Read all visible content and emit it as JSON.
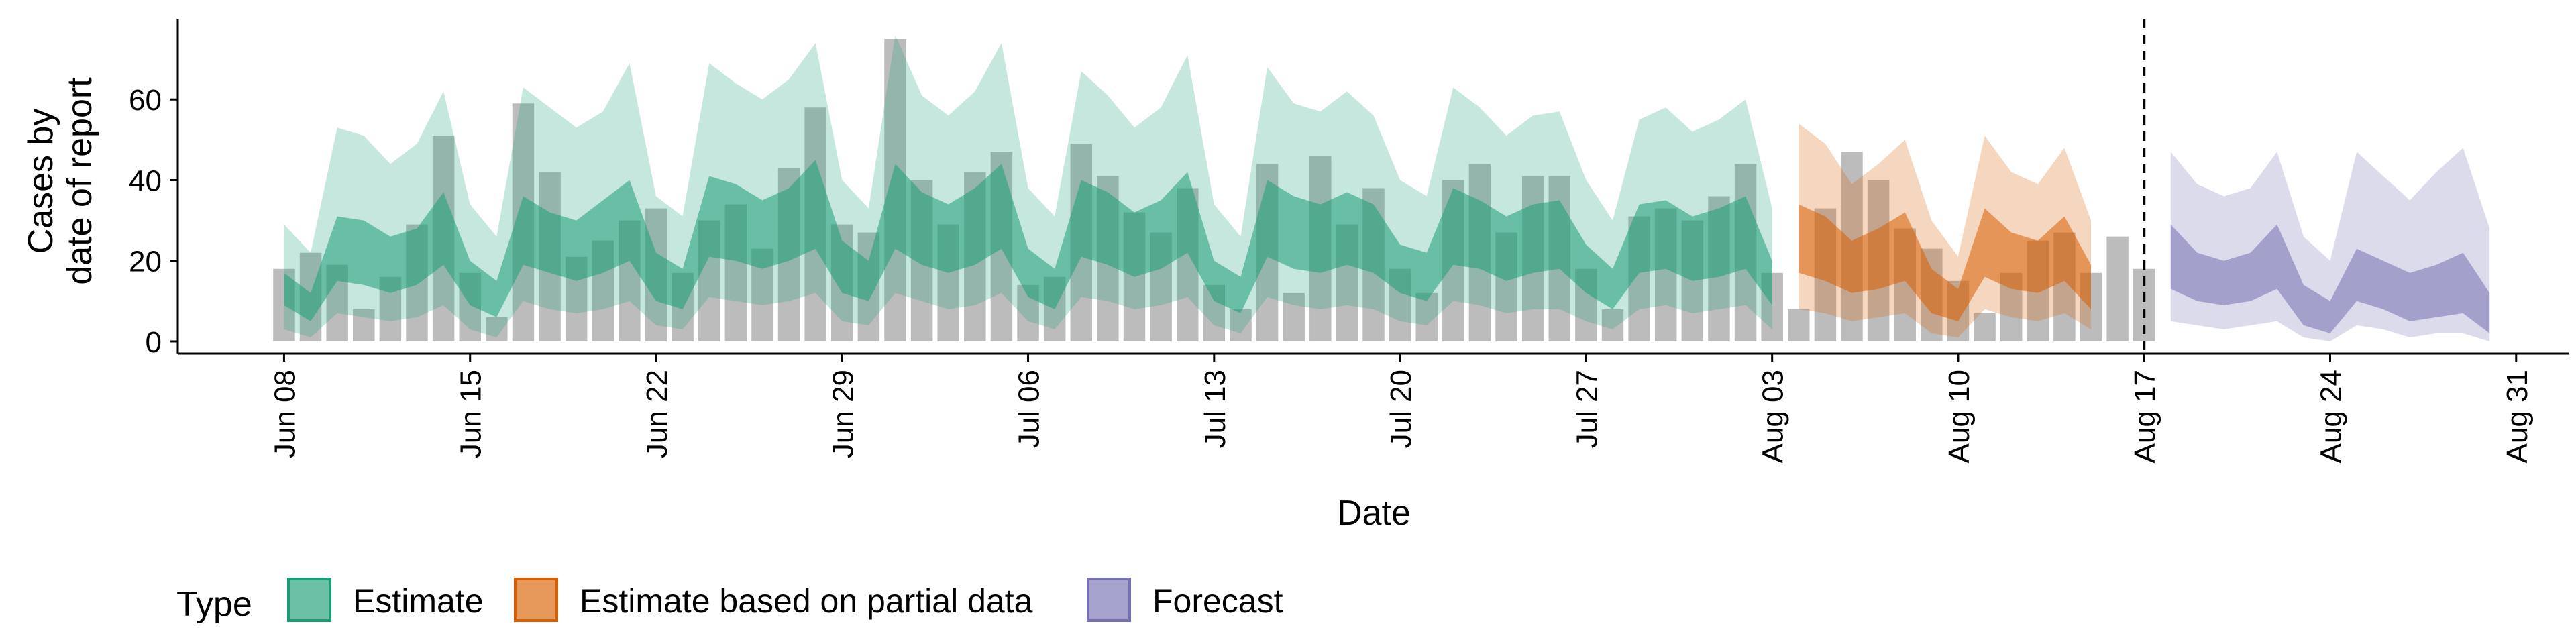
{
  "chart_data": {
    "type": "area",
    "xlabel": "Date",
    "ylabel_lines": [
      "Cases by",
      "date of report"
    ],
    "ylim": [
      -3,
      80
    ],
    "y_ticks": [
      0,
      20,
      40,
      60
    ],
    "x_start": "2020-06-04",
    "x_end": "2020-09-02",
    "x_ticks": [
      {
        "date": "2020-06-08",
        "label": "Jun 08"
      },
      {
        "date": "2020-06-15",
        "label": "Jun 15"
      },
      {
        "date": "2020-06-22",
        "label": "Jun 22"
      },
      {
        "date": "2020-06-29",
        "label": "Jun 29"
      },
      {
        "date": "2020-07-06",
        "label": "Jul 06"
      },
      {
        "date": "2020-07-13",
        "label": "Jul 13"
      },
      {
        "date": "2020-07-20",
        "label": "Jul 20"
      },
      {
        "date": "2020-07-27",
        "label": "Jul 27"
      },
      {
        "date": "2020-08-03",
        "label": "Aug 03"
      },
      {
        "date": "2020-08-10",
        "label": "Aug 10"
      },
      {
        "date": "2020-08-17",
        "label": "Aug 17"
      },
      {
        "date": "2020-08-24",
        "label": "Aug 24"
      },
      {
        "date": "2020-08-31",
        "label": "Aug 31"
      }
    ],
    "forecast_boundary_date": "2020-08-17",
    "bars": {
      "name": "Reported cases",
      "start_date": "2020-06-08",
      "values": [
        18,
        22,
        19,
        8,
        16,
        29,
        51,
        17,
        6,
        59,
        42,
        21,
        25,
        30,
        33,
        17,
        30,
        34,
        23,
        43,
        58,
        29,
        27,
        75,
        40,
        29,
        42,
        47,
        14,
        16,
        49,
        41,
        32,
        27,
        38,
        14,
        8,
        44,
        12,
        46,
        29,
        38,
        18,
        12,
        40,
        44,
        27,
        41,
        41,
        18,
        8,
        31,
        33,
        30,
        36,
        44,
        17,
        8,
        33,
        47,
        40,
        28,
        23,
        15,
        7,
        17,
        25,
        27,
        17,
        26,
        18
      ]
    },
    "series": [
      {
        "name": "Estimate",
        "color": "#1B9E77",
        "start_date": "2020-06-08",
        "upper90": [
          29,
          22,
          53,
          51,
          44,
          49,
          62,
          34,
          26,
          63,
          58,
          53,
          57,
          69,
          36,
          31,
          69,
          64,
          60,
          65,
          74,
          40,
          33,
          76,
          61,
          56,
          62,
          74,
          38,
          31,
          67,
          61,
          53,
          58,
          71,
          34,
          26,
          68,
          59,
          57,
          62,
          56,
          40,
          36,
          63,
          58,
          51,
          56,
          57,
          40,
          30,
          55,
          58,
          52,
          55,
          60,
          33
        ],
        "upper50": [
          17,
          12,
          31,
          30,
          26,
          28,
          37,
          20,
          15,
          36,
          32,
          30,
          35,
          40,
          22,
          18,
          41,
          39,
          35,
          38,
          45,
          25,
          20,
          44,
          37,
          34,
          38,
          44,
          23,
          18,
          40,
          37,
          32,
          35,
          42,
          20,
          16,
          40,
          36,
          34,
          37,
          34,
          24,
          22,
          38,
          35,
          31,
          34,
          35,
          24,
          18,
          34,
          35,
          31,
          33,
          36,
          20
        ],
        "lower50": [
          9,
          5,
          15,
          14,
          12,
          14,
          19,
          9,
          6,
          19,
          17,
          15,
          17,
          20,
          10,
          8,
          21,
          20,
          18,
          20,
          23,
          12,
          10,
          23,
          19,
          17,
          19,
          23,
          11,
          8,
          21,
          19,
          16,
          18,
          22,
          10,
          7,
          21,
          18,
          17,
          19,
          17,
          12,
          10,
          19,
          18,
          15,
          17,
          18,
          12,
          8,
          17,
          18,
          15,
          16,
          18,
          9
        ],
        "lower90": [
          3,
          1,
          7,
          6,
          5,
          6,
          9,
          3,
          1,
          10,
          8,
          7,
          8,
          10,
          4,
          3,
          11,
          10,
          9,
          10,
          12,
          5,
          4,
          12,
          10,
          8,
          9,
          12,
          5,
          3,
          11,
          10,
          8,
          9,
          11,
          4,
          2,
          11,
          9,
          8,
          9,
          8,
          5,
          4,
          10,
          9,
          7,
          8,
          8,
          5,
          3,
          8,
          9,
          7,
          8,
          9,
          3
        ]
      },
      {
        "name": "Estimate based on partial data",
        "color": "#D95F02",
        "start_date": "2020-08-04",
        "upper90": [
          54,
          49,
          39,
          44,
          50,
          30,
          21,
          51,
          42,
          39,
          48,
          30
        ],
        "upper50": [
          34,
          31,
          25,
          28,
          32,
          18,
          13,
          33,
          27,
          25,
          31,
          19
        ],
        "lower50": [
          17,
          15,
          12,
          13,
          15,
          7,
          5,
          16,
          13,
          12,
          15,
          8
        ],
        "lower90": [
          8,
          7,
          5,
          6,
          7,
          2,
          1,
          8,
          6,
          5,
          7,
          3
        ]
      },
      {
        "name": "Forecast",
        "color": "#7570B3",
        "start_date": "2020-08-18",
        "upper90": [
          47,
          39,
          36,
          38,
          47,
          26,
          20,
          47,
          41,
          35,
          42,
          48,
          28
        ],
        "upper50": [
          29,
          22,
          20,
          22,
          29,
          14,
          10,
          23,
          20,
          17,
          19,
          22,
          12
        ],
        "lower50": [
          13,
          10,
          9,
          10,
          13,
          4,
          2,
          10,
          8,
          5,
          6,
          7,
          2
        ],
        "lower90": [
          5,
          4,
          3,
          4,
          5,
          1,
          0,
          4,
          3,
          1,
          2,
          2,
          0
        ]
      }
    ],
    "legend": {
      "title": "Type",
      "position": "bottom",
      "items": [
        {
          "label": "Estimate",
          "color": "#1B9E77"
        },
        {
          "label": "Estimate based on partial data",
          "color": "#D95F02"
        },
        {
          "label": "Forecast",
          "color": "#7570B3"
        }
      ]
    },
    "grid": false
  }
}
